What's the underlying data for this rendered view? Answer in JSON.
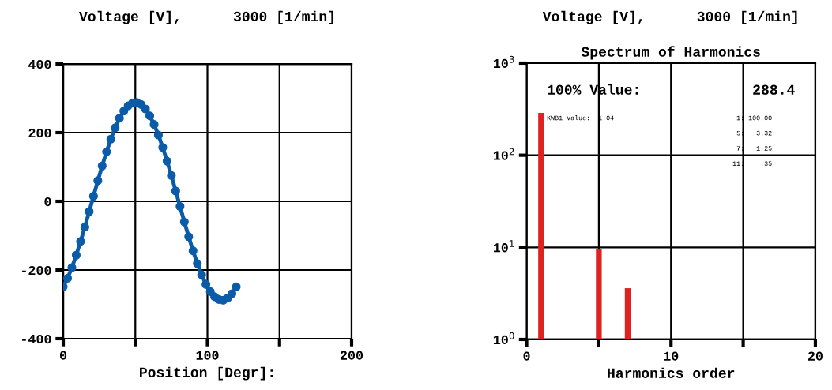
{
  "chart_data": [
    {
      "type": "line",
      "title": "Voltage [V],      3000 [1/min]",
      "xlabel": "Position [Degr]:",
      "x": [
        0,
        3,
        6,
        9,
        12,
        15,
        18,
        21,
        24,
        27,
        30,
        33,
        36,
        39,
        42,
        45,
        48,
        51,
        54,
        57,
        60,
        63,
        66,
        69,
        72,
        75,
        78,
        81,
        84,
        87,
        90,
        93,
        96,
        99,
        102,
        105,
        108,
        111,
        114,
        117,
        120
      ],
      "series": [
        {
          "color": "#0a5ca8",
          "values": [
            -249,
            -224,
            -193,
            -157,
            -117,
            -75,
            -30,
            15,
            60,
            103,
            144,
            181,
            214,
            242,
            263,
            278,
            286,
            288,
            282,
            269,
            249,
            224,
            193,
            157,
            117,
            75,
            30,
            -15,
            -60,
            -103,
            -144,
            -181,
            -214,
            -242,
            -263,
            -278,
            -286,
            -288,
            -282,
            -269,
            -249
          ]
        }
      ],
      "xlim": [
        0,
        200
      ],
      "xticks": [
        0,
        {
          "value": 50,
          "label": null
        },
        100,
        {
          "value": 150,
          "label": null
        },
        200
      ],
      "ylim": [
        -400,
        400
      ],
      "yticks": [
        -400,
        -200,
        0,
        200,
        400
      ],
      "grid": true,
      "marker": "circle",
      "line_style": "solid"
    },
    {
      "type": "bar",
      "title": "Voltage [V],      3000 [1/min]",
      "subtitle": "Spectrum of Harmonics",
      "xlabel": "Harmonics order",
      "x": [
        1,
        5,
        7,
        11
      ],
      "values": [
        288.4,
        9.57,
        3.6,
        1.01
      ],
      "color": "#dd2222",
      "xlim": [
        0,
        20
      ],
      "xticks": [
        0,
        {
          "value": 5,
          "label": null
        },
        10,
        {
          "value": 15,
          "label": null
        },
        20
      ],
      "ylim": [
        1,
        1000
      ],
      "yticks": [
        {
          "value": 1,
          "label": "10$^{0}$"
        },
        {
          "value": 10,
          "label": "10$^{1}$"
        },
        {
          "value": 100,
          "label": "10$^{2}$"
        },
        {
          "value": 1000,
          "label": "10$^{3}$"
        }
      ],
      "log": true,
      "grid": true,
      "annotations": [
        "100% Value:",
        "288.4",
        "KWB1 Value:  1.04",
        "1: 100.00",
        "5:   3.32",
        "7:   1.25",
        "11:    .35"
      ]
    }
  ]
}
